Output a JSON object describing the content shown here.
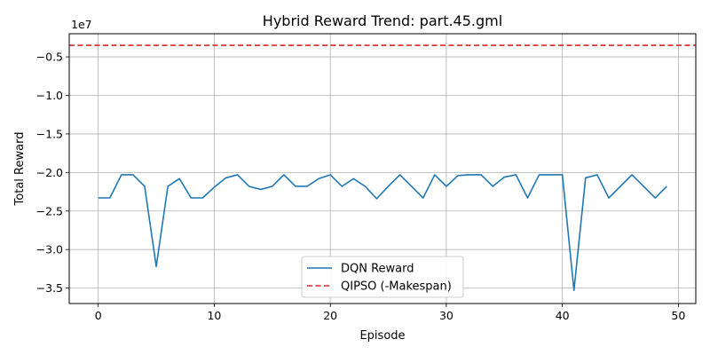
{
  "chart_data": {
    "type": "line",
    "title": "Hybrid Reward Trend: part.45.gml",
    "xlabel": "Episode",
    "ylabel": "Total Reward",
    "y_multiplier_label": "1e7",
    "xlim": [
      -2.5,
      51.5
    ],
    "ylim": [
      -3.7,
      -0.2
    ],
    "x_ticks": [
      0,
      10,
      20,
      30,
      40,
      50
    ],
    "x_tick_labels": [
      "0",
      "10",
      "20",
      "30",
      "40",
      "50"
    ],
    "y_ticks": [
      -3.5,
      -3.0,
      -2.5,
      -2.0,
      -1.5,
      -1.0,
      -0.5
    ],
    "y_tick_labels": [
      "−3.5",
      "−3.0",
      "−2.5",
      "−2.0",
      "−1.5",
      "−1.0",
      "−0.5"
    ],
    "grid": true,
    "legend_position": "bottom-center",
    "series": [
      {
        "name": "DQN Reward",
        "color": "#1f77b4",
        "style": "solid",
        "x": [
          0,
          1,
          2,
          3,
          4,
          5,
          6,
          7,
          8,
          9,
          10,
          11,
          12,
          13,
          14,
          15,
          16,
          17,
          18,
          19,
          20,
          21,
          22,
          23,
          24,
          25,
          26,
          27,
          28,
          29,
          30,
          31,
          32,
          33,
          34,
          35,
          36,
          37,
          38,
          39,
          40,
          41,
          42,
          43,
          44,
          45,
          46,
          47,
          48,
          49
        ],
        "y": [
          -2.33,
          -2.33,
          -2.03,
          -2.03,
          -2.18,
          -3.22,
          -2.18,
          -2.08,
          -2.33,
          -2.33,
          -2.19,
          -2.07,
          -2.03,
          -2.18,
          -2.22,
          -2.18,
          -2.03,
          -2.18,
          -2.18,
          -2.08,
          -2.03,
          -2.18,
          -2.08,
          -2.18,
          -2.34,
          -2.18,
          -2.03,
          -2.18,
          -2.33,
          -2.03,
          -2.18,
          -2.04,
          -2.03,
          -2.03,
          -2.18,
          -2.06,
          -2.03,
          -2.33,
          -2.03,
          -2.03,
          -2.03,
          -3.53,
          -2.07,
          -2.03,
          -2.33,
          -2.18,
          -2.03,
          -2.18,
          -2.33,
          -2.18
        ]
      },
      {
        "name": "QIPSO (-Makespan)",
        "color": "#d62728",
        "style": "dashed",
        "y_constant": -0.35
      }
    ]
  }
}
